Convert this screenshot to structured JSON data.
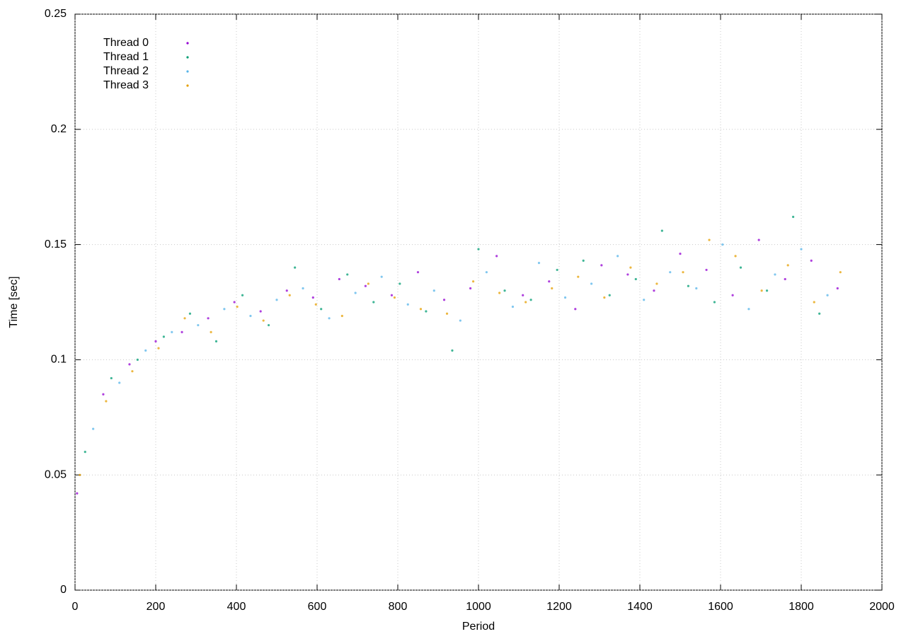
{
  "chart_data": {
    "type": "scatter",
    "xlabel": "Period",
    "ylabel": "Time [sec]",
    "xlim": [
      0,
      2000
    ],
    "xticks": [
      0,
      200,
      400,
      600,
      800,
      1000,
      1200,
      1400,
      1600,
      1800,
      2000
    ],
    "ylim": [
      0,
      0.25
    ],
    "yticks": [
      0,
      0.05,
      0.1,
      0.15,
      0.2,
      0.25
    ],
    "grid": true,
    "legend": "top-left",
    "series": [
      {
        "name": "Thread 0",
        "color": "#9400d3",
        "x": [
          5,
          70,
          135,
          200,
          265,
          330,
          395,
          460,
          525,
          590,
          655,
          720,
          785,
          850,
          915,
          980,
          1045,
          1110,
          1175,
          1240,
          1305,
          1370,
          1435,
          1500,
          1565,
          1630,
          1695,
          1760,
          1825,
          1890
        ],
        "values": [
          0.042,
          0.085,
          0.098,
          0.108,
          0.112,
          0.118,
          0.125,
          0.121,
          0.13,
          0.127,
          0.135,
          0.132,
          0.128,
          0.138,
          0.126,
          0.131,
          0.145,
          0.128,
          0.134,
          0.122,
          0.141,
          0.137,
          0.13,
          0.146,
          0.139,
          0.128,
          0.152,
          0.135,
          0.143,
          0.131
        ]
      },
      {
        "name": "Thread 1",
        "color": "#009e73",
        "x": [
          25,
          90,
          155,
          220,
          285,
          350,
          415,
          480,
          545,
          610,
          675,
          740,
          805,
          870,
          935,
          1000,
          1065,
          1130,
          1195,
          1260,
          1325,
          1390,
          1455,
          1520,
          1585,
          1650,
          1715,
          1780,
          1845
        ],
        "values": [
          0.06,
          0.092,
          0.1,
          0.11,
          0.12,
          0.108,
          0.128,
          0.115,
          0.14,
          0.122,
          0.137,
          0.125,
          0.133,
          0.121,
          0.104,
          0.148,
          0.13,
          0.126,
          0.139,
          0.143,
          0.128,
          0.135,
          0.156,
          0.132,
          0.125,
          0.14,
          0.13,
          0.162,
          0.12
        ]
      },
      {
        "name": "Thread 2",
        "color": "#56b4e9",
        "x": [
          45,
          110,
          175,
          240,
          305,
          370,
          435,
          500,
          565,
          630,
          695,
          760,
          825,
          890,
          955,
          1020,
          1085,
          1150,
          1215,
          1280,
          1345,
          1410,
          1475,
          1540,
          1605,
          1670,
          1735,
          1800,
          1865
        ],
        "values": [
          0.07,
          0.09,
          0.104,
          0.112,
          0.115,
          0.122,
          0.119,
          0.126,
          0.131,
          0.118,
          0.129,
          0.136,
          0.124,
          0.13,
          0.117,
          0.138,
          0.123,
          0.142,
          0.127,
          0.133,
          0.145,
          0.126,
          0.138,
          0.131,
          0.15,
          0.122,
          0.137,
          0.148,
          0.128
        ]
      },
      {
        "name": "Thread 3",
        "color": "#e69f00",
        "x": [
          12,
          77,
          142,
          207,
          272,
          337,
          402,
          467,
          532,
          597,
          662,
          727,
          792,
          857,
          922,
          987,
          1052,
          1117,
          1182,
          1247,
          1312,
          1377,
          1442,
          1507,
          1572,
          1637,
          1702,
          1767,
          1832,
          1897
        ],
        "values": [
          0.05,
          0.082,
          0.095,
          0.105,
          0.118,
          0.112,
          0.123,
          0.117,
          0.128,
          0.124,
          0.119,
          0.133,
          0.127,
          0.122,
          0.12,
          0.134,
          0.129,
          0.125,
          0.131,
          0.136,
          0.127,
          0.14,
          0.133,
          0.138,
          0.152,
          0.145,
          0.13,
          0.141,
          0.125,
          0.138
        ]
      }
    ]
  }
}
